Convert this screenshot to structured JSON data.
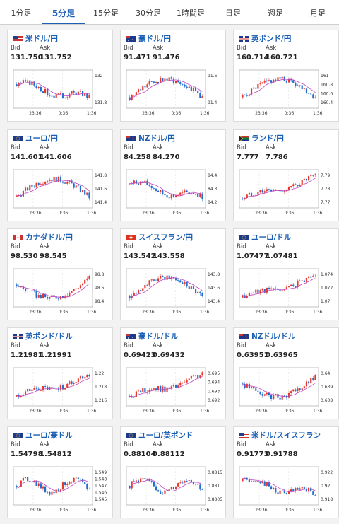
{
  "tabs": [
    "1分足",
    "5分足",
    "15分足",
    "30分足",
    "1時間足",
    "日足",
    "週足",
    "月足"
  ],
  "active_tab": 1,
  "labels": {
    "bid": "Bid",
    "ask": "Ask"
  },
  "time_labels": [
    "23:36",
    "0:36",
    "1:36"
  ],
  "colors": {
    "accent": "#1a5fb4",
    "up": "#e8382e",
    "down": "#1f6fd1",
    "ma": "#c040c0"
  },
  "cards": [
    {
      "pair": "米ドル/円",
      "flag": "us-jp",
      "bid": "131.750",
      "ask": "131.752",
      "yticks": [
        "132",
        "131.8"
      ],
      "trend": "down"
    },
    {
      "pair": "豪ドル/円",
      "flag": "au-jp",
      "bid": "91.471",
      "ask": "91.476",
      "yticks": [
        "91.6",
        "91.4"
      ],
      "trend": "upthendown"
    },
    {
      "pair": "英ポンド/円",
      "flag": "gb-jp",
      "bid": "160.714",
      "ask": "160.721",
      "yticks": [
        "161",
        "160.8",
        "160.6",
        "160.4"
      ],
      "trend": "upthendown"
    },
    {
      "pair": "ユーロ/円",
      "flag": "eu-jp",
      "bid": "141.601",
      "ask": "141.606",
      "yticks": [
        "141.8",
        "141.6",
        "141.4"
      ],
      "trend": "upthendown"
    },
    {
      "pair": "NZドル/円",
      "flag": "nz-jp",
      "bid": "84.258",
      "ask": "84.270",
      "yticks": [
        "84.4",
        "84.3",
        "84.2"
      ],
      "trend": "down"
    },
    {
      "pair": "ランド/円",
      "flag": "za-jp",
      "bid": "7.777",
      "ask": "7.786",
      "yticks": [
        "7.79",
        "7.78",
        "7.77"
      ],
      "trend": "up"
    },
    {
      "pair": "カナダドル/円",
      "flag": "ca-jp",
      "bid": "98.530",
      "ask": "98.545",
      "yticks": [
        "98.8",
        "98.6",
        "98.4"
      ],
      "trend": "downup"
    },
    {
      "pair": "スイスフラン/円",
      "flag": "ch-jp",
      "bid": "143.542",
      "ask": "143.558",
      "yticks": [
        "143.8",
        "143.6",
        "143.4"
      ],
      "trend": "upthendown"
    },
    {
      "pair": "ユーロ/ドル",
      "flag": "eu-us",
      "bid": "1.07477",
      "ask": "1.07481",
      "yticks": [
        "1.074",
        "1.072",
        "1.07"
      ],
      "trend": "up"
    },
    {
      "pair": "英ポンド/ドル",
      "flag": "gb-us",
      "bid": "1.21981",
      "ask": "1.21991",
      "yticks": [
        "1.22",
        "1.218",
        "1.216"
      ],
      "trend": "up"
    },
    {
      "pair": "豪ドル/ドル",
      "flag": "au-us",
      "bid": "0.69423",
      "ask": "0.69432",
      "yticks": [
        "0.695",
        "0.694",
        "0.693",
        "0.692"
      ],
      "trend": "up"
    },
    {
      "pair": "NZドル/ドル",
      "flag": "nz-us",
      "bid": "0.63951",
      "ask": "0.63965",
      "yticks": [
        "0.64",
        "0.639",
        "0.638"
      ],
      "trend": "downup"
    },
    {
      "pair": "ユーロ/豪ドル",
      "flag": "eu-au",
      "bid": "1.54798",
      "ask": "1.54812",
      "yticks": [
        "1.549",
        "1.548",
        "1.547",
        "1.546",
        "1.545"
      ],
      "trend": "flat"
    },
    {
      "pair": "ユーロ/英ポンド",
      "flag": "eu-gb",
      "bid": "0.88104",
      "ask": "0.88112",
      "yticks": [
        "0.8815",
        "0.881",
        "0.8805"
      ],
      "trend": "flat"
    },
    {
      "pair": "米ドル/スイスフラン",
      "flag": "us-ch",
      "bid": "0.91773",
      "ask": "0.91788",
      "yticks": [
        "0.922",
        "0.92",
        "0.918"
      ],
      "trend": "down"
    }
  ]
}
